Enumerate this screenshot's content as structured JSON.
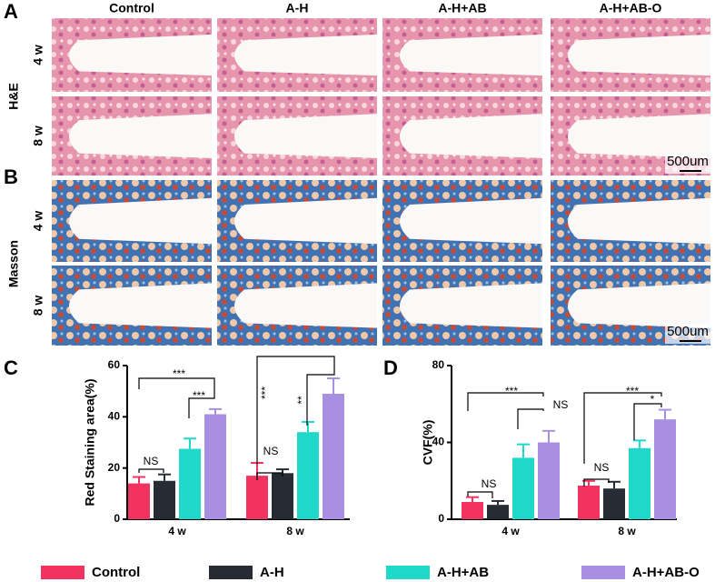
{
  "panels": {
    "a": "A",
    "b": "B",
    "c": "C",
    "d": "D"
  },
  "columns": [
    "Control",
    "A-H",
    "A-H+AB",
    "A-H+AB-O"
  ],
  "stains": [
    "H&E",
    "Masson"
  ],
  "rows": [
    "4 w",
    "8 w",
    "4 w",
    "8 w"
  ],
  "scale_bars": [
    "500um",
    "500um"
  ],
  "chart_data": [
    {
      "type": "bar",
      "y_label": "Red Staining area(%)",
      "categories": [
        "4 w",
        "8 w"
      ],
      "ylim": [
        0,
        60
      ],
      "yticks": [
        0,
        20,
        40,
        60
      ],
      "series": [
        {
          "name": "Control",
          "color": "#f23360",
          "values": [
            14,
            17
          ],
          "errors": [
            2.5,
            5
          ]
        },
        {
          "name": "A-H",
          "color": "#262b34",
          "values": [
            15,
            18
          ],
          "errors": [
            2.5,
            1.5
          ]
        },
        {
          "name": "A-H+AB",
          "color": "#1fd8c9",
          "values": [
            27.5,
            34
          ],
          "errors": [
            4,
            4
          ]
        },
        {
          "name": "A-H+AB-O",
          "color": "#a98fe2",
          "values": [
            41,
            49
          ],
          "errors": [
            2,
            6
          ]
        }
      ],
      "annotations": [
        "NS",
        "***",
        "***",
        "NS",
        "***",
        "**"
      ]
    },
    {
      "type": "bar",
      "y_label": "CVF(%)",
      "categories": [
        "4 w",
        "8 w"
      ],
      "ylim": [
        0,
        80
      ],
      "yticks": [
        0,
        40,
        80
      ],
      "series": [
        {
          "color": "#f23360",
          "values": [
            9,
            17.5
          ],
          "errors": [
            2.5,
            2.5
          ]
        },
        {
          "color": "#262b34",
          "values": [
            7.5,
            16
          ],
          "errors": [
            2,
            3.5
          ]
        },
        {
          "color": "#1fd8c9",
          "values": [
            32,
            37
          ],
          "errors": [
            7,
            4
          ]
        },
        {
          "color": "#a98fe2",
          "values": [
            40,
            52
          ],
          "errors": [
            6,
            5
          ]
        }
      ],
      "annotations": [
        "NS",
        "***",
        "NS",
        "NS",
        "***",
        "*"
      ]
    }
  ]
}
